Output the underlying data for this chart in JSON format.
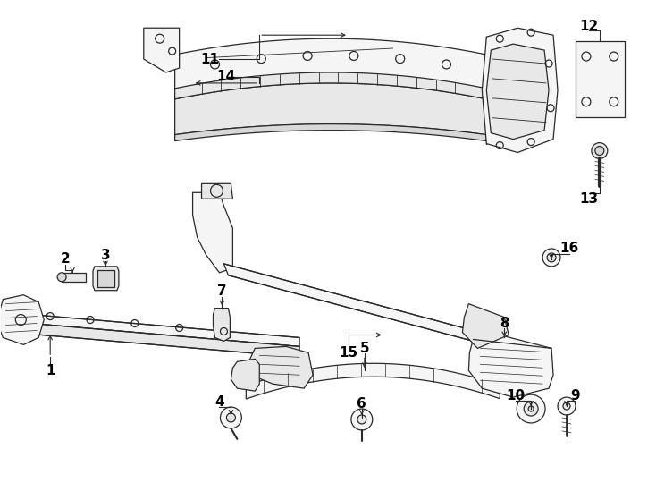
{
  "bg_color": "#ffffff",
  "line_color": "#2a2a2a",
  "lw": 0.9,
  "fig_w": 7.34,
  "fig_h": 5.4,
  "dpi": 100
}
